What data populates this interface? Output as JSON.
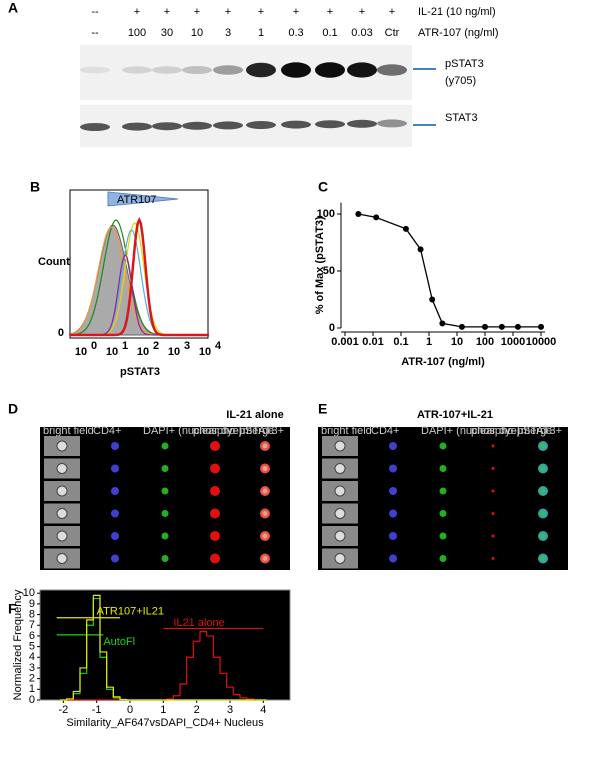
{
  "panels": {
    "a": {
      "label": "A",
      "rows": [
        {
          "name": "IL-21 (10 ng/ml)",
          "lanes": [
            "--",
            "+",
            "+",
            "+",
            "+",
            "+",
            "+",
            "+",
            "+",
            "+"
          ]
        },
        {
          "name": "ATR-107 (ng/ml)",
          "lanes": [
            "--",
            "100",
            "30",
            "10",
            "3",
            "1",
            "0.3",
            "0.1",
            "0.03",
            "Ctr"
          ]
        }
      ],
      "bands": [
        "pSTAT3",
        "(y705)",
        "STAT3"
      ]
    },
    "b": {
      "label": "B",
      "gate": "ATR107",
      "ylabel": "Count",
      "xlabel": "pSTAT3",
      "ytick": "0",
      "xticks": [
        "10",
        "10",
        "10",
        "10",
        "10"
      ],
      "xtick_exponents": [
        "0",
        "1",
        "2",
        "3",
        "4"
      ]
    },
    "d": {
      "label": "D",
      "title": "IL-21 alone",
      "columns": [
        "bright field",
        "CD4+",
        "DAPI+ (nuclear dye)",
        "phospho-pSTAT3+",
        "merge"
      ]
    },
    "e": {
      "label": "E",
      "title": "ATR-107+IL-21",
      "columns": [
        "bright field",
        "CD4+",
        "DAPI+ (nuclear dye)",
        "phospho-pSTAT3+",
        "merge"
      ]
    }
  },
  "chart_data": [
    {
      "type": "scatter",
      "label": "C",
      "xlabel": "ATR-107 (ng/ml)",
      "ylabel": "% of Max (pSTAT3)",
      "x": [
        0.003,
        0.013,
        0.15,
        0.5,
        1.3,
        3,
        15,
        100,
        400,
        1500,
        10000
      ],
      "values": [
        100,
        97,
        87,
        69,
        25,
        4,
        1,
        1,
        1,
        1,
        1
      ],
      "color": "#000000",
      "connect": true,
      "xscale": "log",
      "xlim": [
        0.001,
        10000
      ],
      "xticks": [
        0.001,
        0.01,
        0.1,
        1,
        10,
        100,
        1000,
        10000
      ],
      "ylim": [
        0,
        110
      ],
      "yticks": [
        0,
        50,
        100
      ]
    },
    {
      "type": "line",
      "label": "F",
      "xlabel": "Similarity_AF647vsDAPI_CD4+ Nucleus",
      "ylabel": "Normalized Frequency",
      "background": "#000000",
      "x": [
        -2,
        -1.8,
        -1.6,
        -1.4,
        -1.2,
        -1,
        -0.8,
        -0.6,
        -0.4,
        -0.2,
        0,
        0.2,
        0.4,
        0.6,
        0.8,
        1,
        1.2,
        1.4,
        1.6,
        1.8,
        2,
        2.2,
        2.4,
        2.6,
        2.8,
        3,
        3.2,
        3.4,
        3.6,
        3.8,
        4
      ],
      "series": [
        {
          "name": "ATR107+IL21",
          "color": "#e8e800",
          "values": [
            0,
            0.1,
            0.8,
            3,
            7.5,
            9.8,
            4.5,
            1.2,
            0.3,
            0.05,
            0,
            0,
            0,
            0,
            0,
            0,
            0,
            0,
            0,
            0,
            0,
            0,
            0,
            0,
            0,
            0,
            0,
            0,
            0,
            0,
            0
          ]
        },
        {
          "name": "AutoFl",
          "color": "#22cc22",
          "values": [
            0,
            0.1,
            0.6,
            2.5,
            7,
            9.5,
            4,
            1,
            0.2,
            0,
            0,
            0,
            0,
            0,
            0,
            0,
            0,
            0,
            0,
            0,
            0,
            0,
            0,
            0,
            0,
            0,
            0,
            0,
            0,
            0,
            0
          ]
        },
        {
          "name": "IL21 alone",
          "color": "#dd1111",
          "values": [
            0,
            0,
            0,
            0,
            0,
            0,
            0,
            0,
            0,
            0,
            0,
            0,
            0,
            0,
            0,
            0,
            0.1,
            0.4,
            1.5,
            4,
            5.5,
            6.4,
            6,
            4,
            2.5,
            1.2,
            0.5,
            0.2,
            0.1,
            0,
            0
          ]
        }
      ],
      "xlim": [
        -2.7,
        4.8
      ],
      "xticks": [
        -2,
        -1,
        0,
        1,
        2,
        3,
        4
      ],
      "ylim": [
        0,
        10.3
      ],
      "yticks": [
        0,
        1,
        2,
        3,
        4,
        5,
        6,
        7,
        8,
        9,
        10
      ]
    }
  ]
}
